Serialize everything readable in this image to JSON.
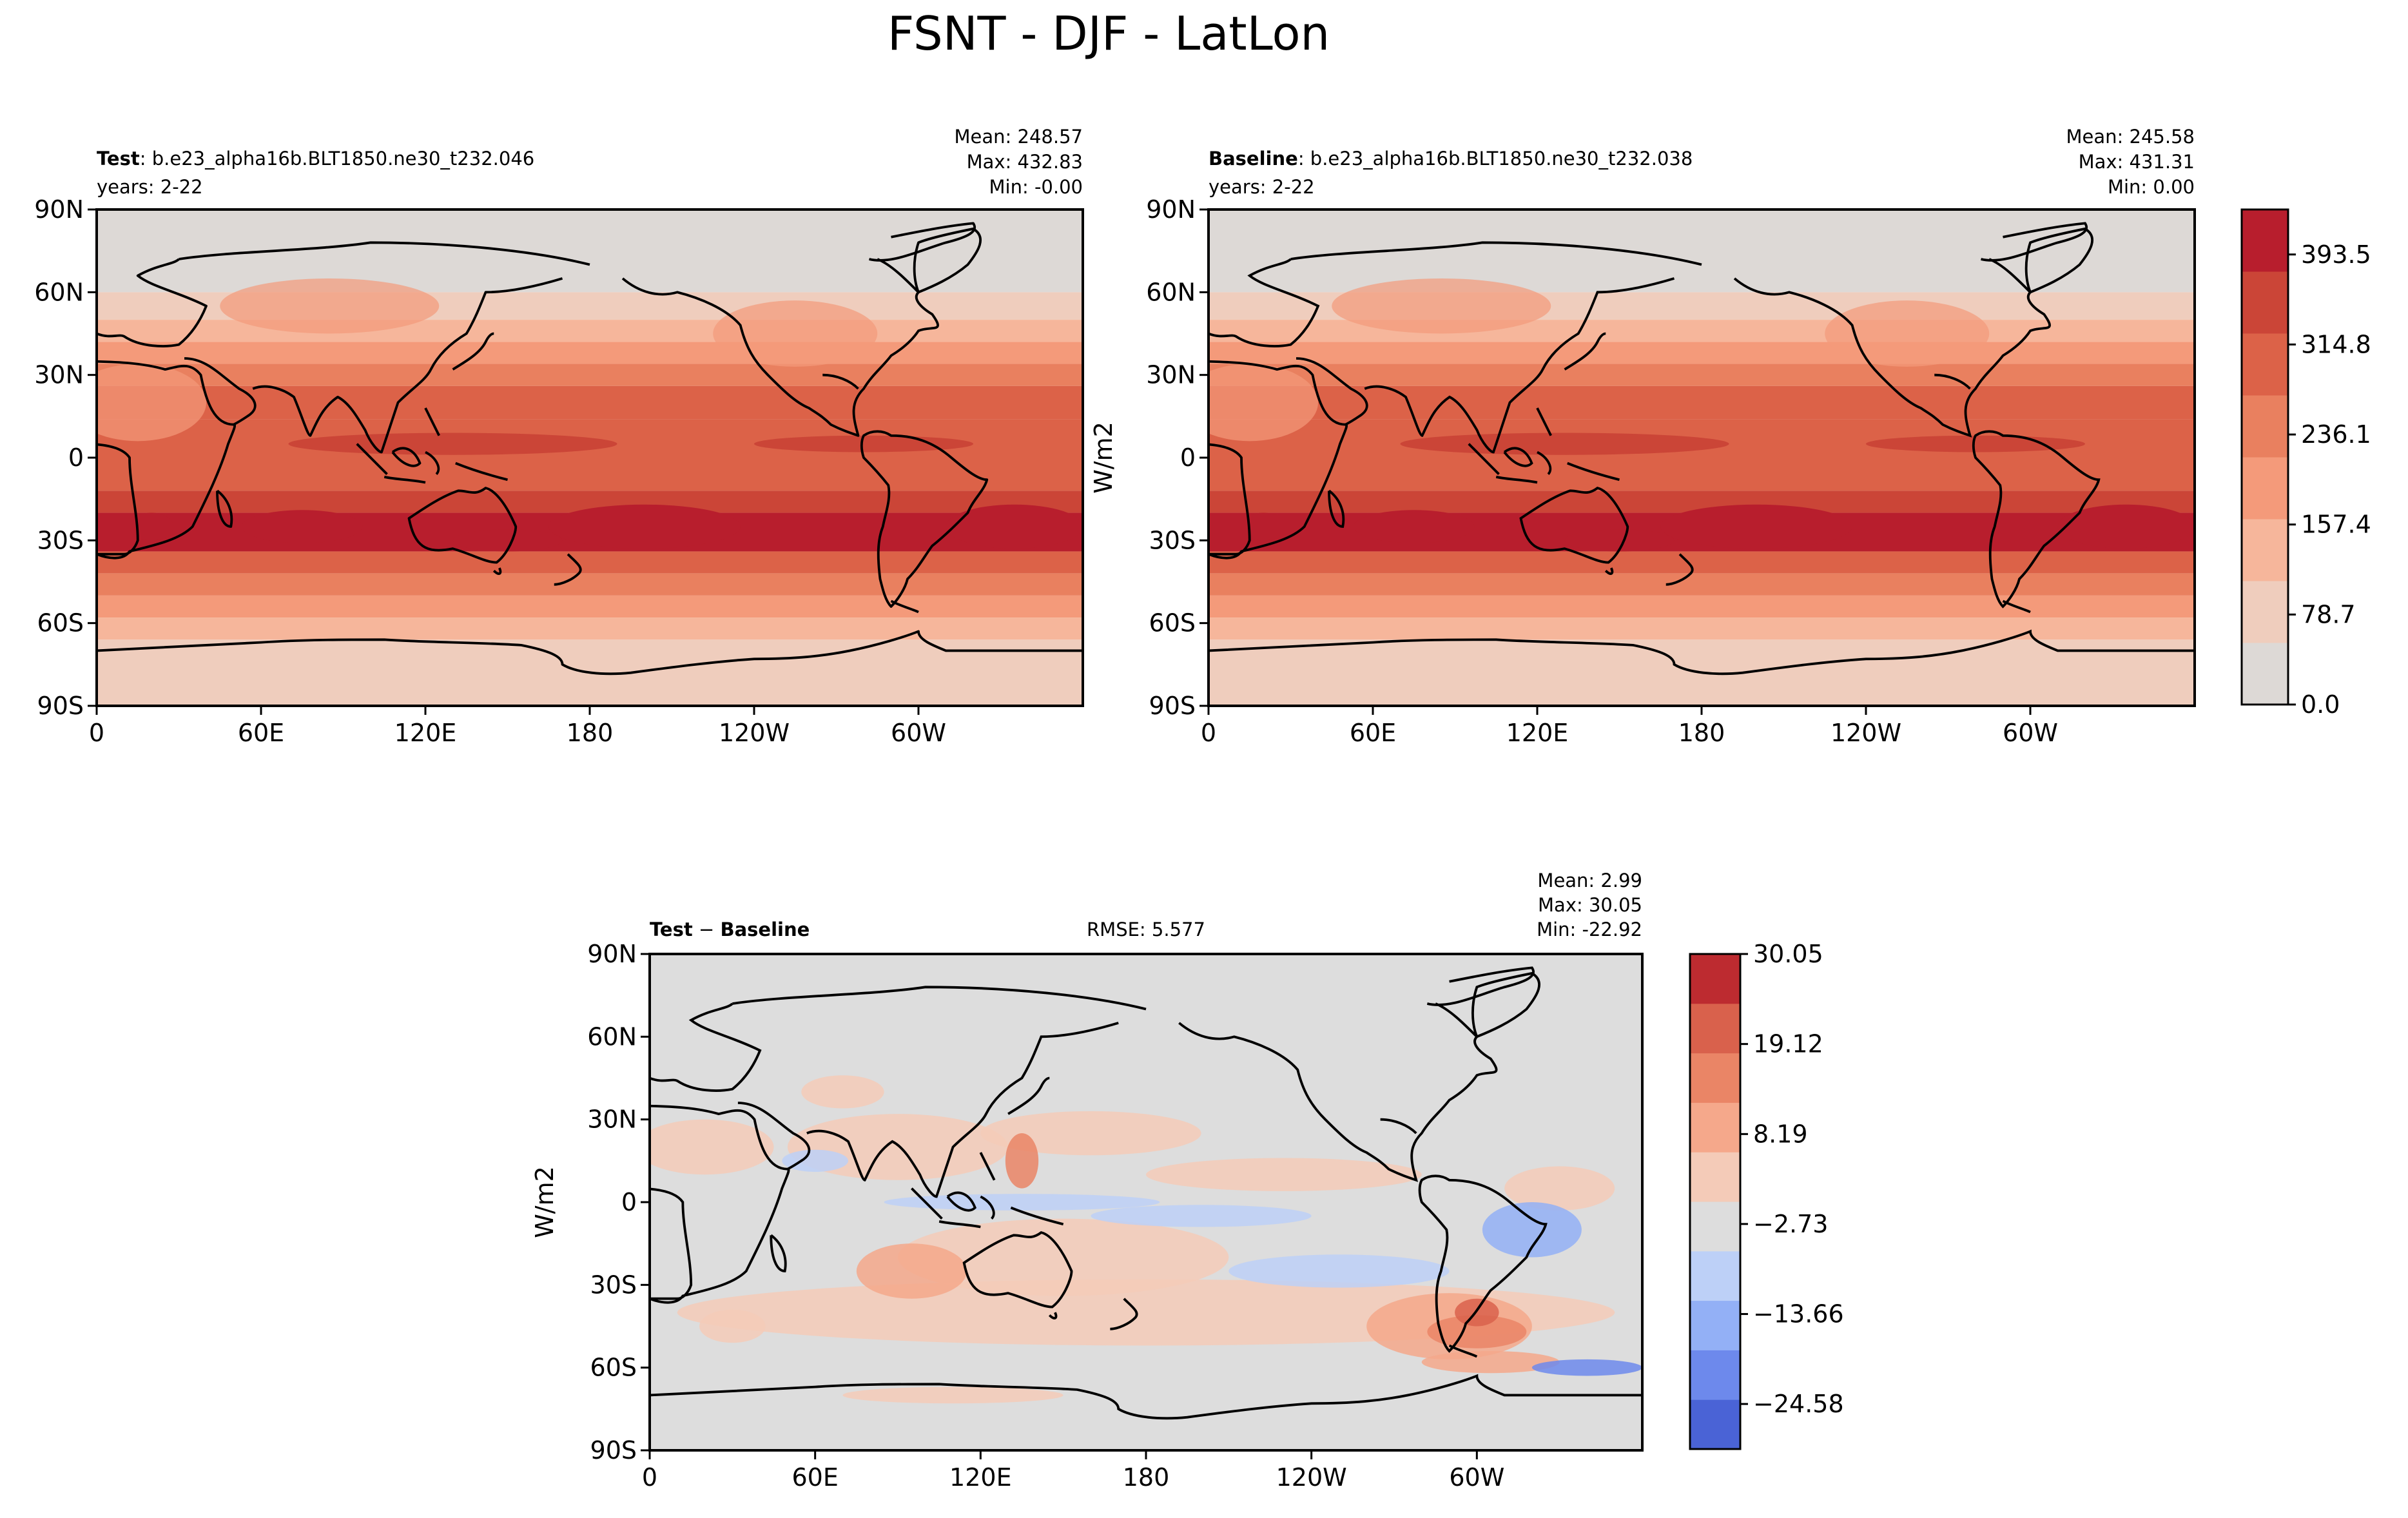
{
  "title": "FSNT - DJF - LatLon",
  "colors": {
    "field": [
      "#ddd9d6",
      "#efcdbd",
      "#f6b69b",
      "#f49a7a",
      "#e9805f",
      "#dc6248",
      "#cb4537",
      "#b81e2d"
    ],
    "diff": [
      "#4a63d6",
      "#6d89ec",
      "#93b0f6",
      "#bdd0f7",
      "#dddddd",
      "#f4cbb8",
      "#f5a88b",
      "#ea8566",
      "#d9614c",
      "#bd2b30"
    ],
    "land": "#ffffff",
    "coast": "#000000"
  },
  "axes": {
    "lat_ticks": [
      "90N",
      "60N",
      "30N",
      "0",
      "30S",
      "60S",
      "90S"
    ],
    "lon_ticks": [
      "0",
      "60E",
      "120E",
      "180",
      "120W",
      "60W"
    ]
  },
  "panels": {
    "test": {
      "label_bold": "Test",
      "label_rest": ": b.e23_alpha16b.BLT1850.ne30_t232.046",
      "years": "years: 2-22",
      "mean": "Mean: 248.57",
      "max": "Max: 432.83",
      "min": "Min: -0.00"
    },
    "baseline": {
      "label_bold": "Baseline",
      "label_rest": ": b.e23_alpha16b.BLT1850.ne30_t232.038",
      "years": "years: 2-22",
      "mean": "Mean: 245.58",
      "max": "Max: 431.31",
      "min": "Min:  0.00",
      "units": "W/m2"
    },
    "diff": {
      "label_bold": "Test",
      "label_mid": " − ",
      "label_bold2": "Baseline",
      "rmse": "RMSE: 5.577",
      "mean": "Mean:  2.99",
      "max": "Max: 30.05",
      "min": "Min: -22.92",
      "units": "W/m2"
    }
  },
  "colorbars": {
    "field": {
      "ticks": [
        "393.5",
        "314.8",
        "236.1",
        "157.4",
        "78.7",
        "0.0"
      ],
      "values": [
        393.5,
        314.8,
        236.1,
        157.4,
        78.7,
        0.0
      ],
      "range": [
        0,
        432.83
      ]
    },
    "diff": {
      "ticks": [
        "30.05",
        "19.12",
        "8.19",
        "−2.73",
        "−13.66",
        "−24.58"
      ],
      "values": [
        30.05,
        19.12,
        8.19,
        -2.73,
        -13.66,
        -24.58
      ],
      "range": [
        -30.05,
        30.05
      ]
    }
  }
}
